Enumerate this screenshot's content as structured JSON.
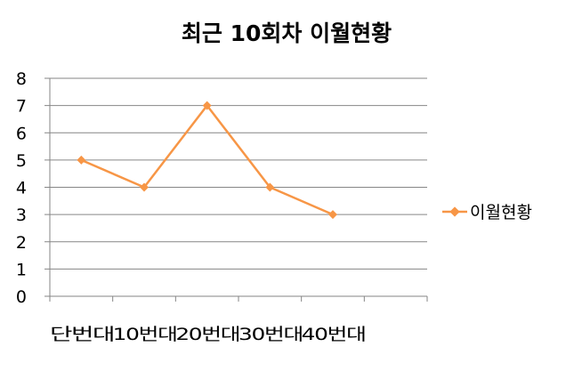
{
  "chart_data": {
    "type": "line",
    "title": "최근 10회차 이월현황",
    "xlabel": "",
    "ylabel": "",
    "categories": [
      "단번대",
      "10번대",
      "20번대",
      "30번대",
      "40번대"
    ],
    "series": [
      {
        "name": "이월현황",
        "values": [
          5,
          4,
          7,
          4,
          3
        ],
        "color": "#F79646"
      }
    ],
    "ylim": [
      0,
      8
    ],
    "yticks": [
      "0",
      "1",
      "2",
      "3",
      "4",
      "5",
      "6",
      "7",
      "8"
    ],
    "grid": true,
    "legend_position": "right",
    "marker": "diamond"
  }
}
